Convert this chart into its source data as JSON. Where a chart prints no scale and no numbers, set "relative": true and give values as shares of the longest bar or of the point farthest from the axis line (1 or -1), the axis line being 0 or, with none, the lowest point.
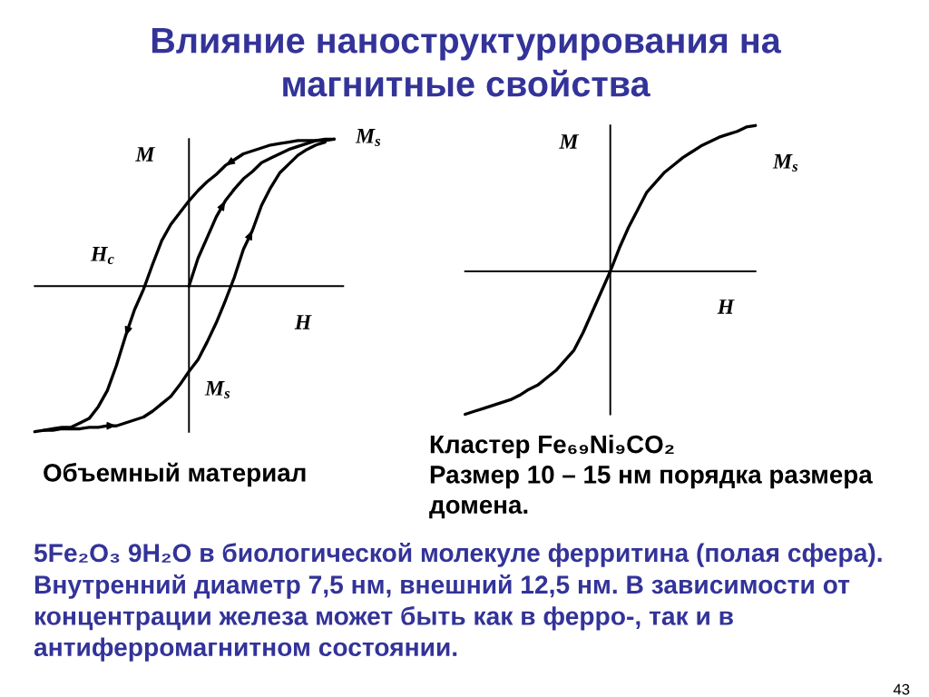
{
  "chart_data": [
    {
      "type": "other",
      "title": "Влияние наноструктурирования на\nмагнитные свойства",
      "annotations": [
        "5Fe₂O₃ 9H₂O в биологической молекуле ферритина (полая сфера).\nВнутренний диаметр 7,5 нм, внешний 12,5 нм. В зависимости от\nконцентрации железа может быть как в ферро-, так и в\nантиферромагнитном состоянии.",
        "43"
      ]
    },
    {
      "type": "line",
      "relative": true,
      "xlabel": "H",
      "ylabel": "M",
      "categories": [
        null,
        null,
        null,
        null,
        null,
        null,
        null,
        null,
        null,
        null,
        null,
        null,
        null,
        null,
        null,
        null,
        null,
        null,
        null,
        null,
        null,
        null,
        null,
        null,
        null,
        null,
        null,
        null,
        null,
        null,
        null,
        null,
        null,
        null,
        null
      ],
      "series": [
        {
          "color": "#000000",
          "values": [
            -0.99,
            -0.98,
            -0.97,
            -0.96,
            -0.96,
            -0.93,
            -0.9,
            -0.82,
            -0.71,
            -0.54,
            -0.34,
            -0.16,
            -0.02,
            0.15,
            0.31,
            0.42,
            0.5,
            0.58,
            0.65,
            0.71,
            0.76,
            0.82,
            0.86,
            0.9,
            0.92,
            0.94,
            0.96,
            0.97,
            0.98,
            0.99,
            0.99,
            0.99,
            1.0,
            1.0,
            null
          ]
        },
        {
          "color": "#000000",
          "values": [
            null,
            -0.98,
            -0.98,
            -0.97,
            -0.97,
            -0.97,
            -0.96,
            -0.96,
            -0.95,
            -0.95,
            -0.93,
            -0.91,
            -0.89,
            -0.85,
            -0.8,
            -0.75,
            -0.67,
            -0.58,
            -0.5,
            -0.38,
            -0.25,
            -0.1,
            0.06,
            0.25,
            0.38,
            0.55,
            0.67,
            0.77,
            0.83,
            0.89,
            0.93,
            0.96,
            0.98,
            null,
            null
          ]
        },
        {
          "color": "#000000",
          "values": [
            null,
            null,
            null,
            null,
            null,
            null,
            null,
            null,
            null,
            null,
            null,
            null,
            null,
            null,
            null,
            null,
            null,
            0,
            0.19,
            0.33,
            0.47,
            0.58,
            0.66,
            0.73,
            0.78,
            0.84,
            0.87,
            0.9,
            0.93,
            0.95,
            0.97,
            0.99,
            0.99,
            1.0,
            null
          ]
        }
      ],
      "annotations": [
        "M$_{s}$",
        "H$_{c}$",
        "M$_{s}$",
        "Объемный материал"
      ]
    },
    {
      "type": "line",
      "relative": true,
      "xlabel": "H",
      "ylabel": "M",
      "categories": [
        null,
        null,
        null,
        null,
        null,
        null,
        null,
        null,
        null,
        null,
        null,
        null,
        null,
        null,
        null,
        null,
        null,
        null,
        null,
        null,
        null,
        null,
        null,
        null,
        null,
        null,
        null,
        null,
        null,
        null,
        null,
        null,
        null
      ],
      "series": [
        {
          "color": "#000000",
          "values": [
            -0.98,
            -0.96,
            -0.94,
            -0.92,
            -0.9,
            -0.88,
            -0.85,
            -0.81,
            -0.78,
            -0.73,
            -0.68,
            -0.61,
            -0.54,
            -0.42,
            -0.28,
            -0.14,
            0,
            0.16,
            0.3,
            0.42,
            0.54,
            0.61,
            0.68,
            0.73,
            0.78,
            0.82,
            0.86,
            0.89,
            0.92,
            0.94,
            0.96,
            0.99,
            1.0
          ]
        }
      ],
      "annotations": [
        "M$_{s}$",
        "Кластер Fe₆₉Ni₉CO₂\nРазмер 10 – 15 нм порядка размера\nдомена."
      ]
    }
  ]
}
